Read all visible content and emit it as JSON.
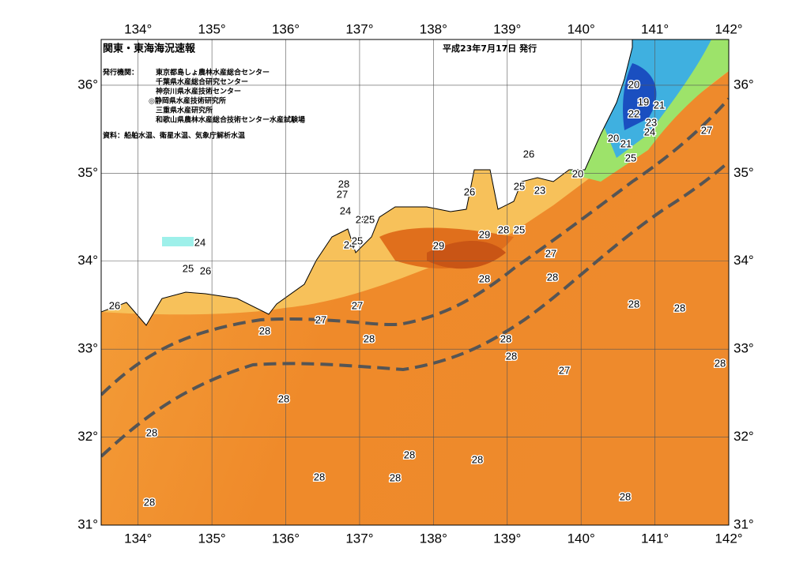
{
  "header": {
    "title": "関東・東海海況速報",
    "date": "平成23年7月17日 発行",
    "issuer_label": "発行機関：",
    "issuers": [
      "東京都島しょ農林水産総合センター",
      "千葉県水産総合研究センター",
      "神奈川県水産技術センター",
      "◎静岡県水産技術研究所",
      "三重県水産研究所",
      "和歌山県農林水産総合技術センター水産試験場"
    ],
    "source": "資料：船舶水温、衛星水温、気象庁解析水温"
  },
  "map": {
    "xlim": [
      133.5,
      142
    ],
    "ylim": [
      31,
      36.52
    ],
    "xticks": [
      {
        "value": 134,
        "label": "134°"
      },
      {
        "value": 135,
        "label": "135°"
      },
      {
        "value": 136,
        "label": "136°"
      },
      {
        "value": 137,
        "label": "137°"
      },
      {
        "value": 138,
        "label": "138°"
      },
      {
        "value": 139,
        "label": "139°"
      },
      {
        "value": 140,
        "label": "140°"
      },
      {
        "value": 141,
        "label": "141°"
      },
      {
        "value": 142,
        "label": "142°"
      }
    ],
    "yticks": [
      {
        "value": 31,
        "label": "31°"
      },
      {
        "value": 32,
        "label": "32°"
      },
      {
        "value": 33,
        "label": "33°"
      },
      {
        "value": 34,
        "label": "34°"
      },
      {
        "value": 35,
        "label": "35°"
      },
      {
        "value": 36,
        "label": "36°"
      }
    ],
    "contour_labels": [
      26,
      24,
      25,
      26,
      28,
      27,
      24,
      23,
      25,
      24,
      25,
      29,
      29,
      28,
      26,
      25,
      25,
      23,
      26,
      20,
      19,
      21,
      22,
      23,
      24,
      20,
      21,
      25,
      20,
      27,
      27,
      28,
      28,
      27,
      27,
      28,
      28,
      28,
      28,
      27,
      28,
      28,
      28,
      28,
      28,
      28,
      28,
      28,
      28,
      28,
      28
    ]
  }
}
